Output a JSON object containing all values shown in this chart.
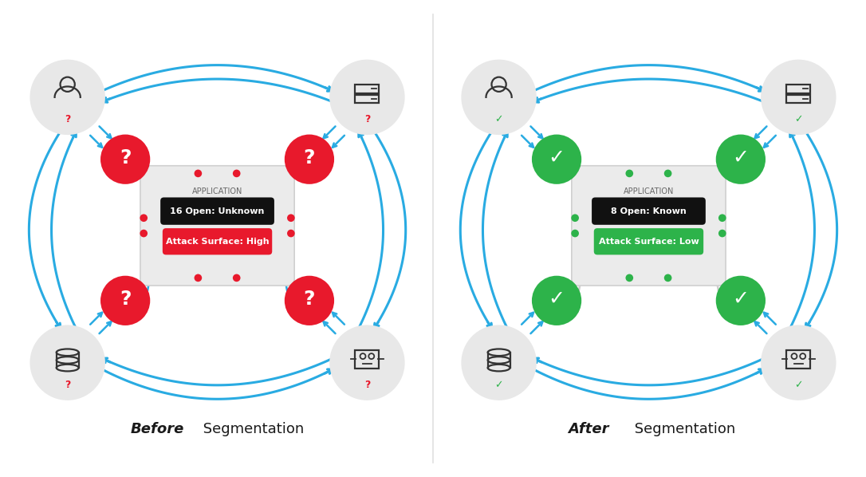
{
  "bg_color": "#ffffff",
  "blue_arrow": "#29abe2",
  "gray_arrow": "#cccccc",
  "red_circle": "#e8192c",
  "green_circle": "#2db34a",
  "green_dot": "#2db34a",
  "gray_circle_bg": "#e8e8e8",
  "dark_text": "#1a1a1a",
  "app_box_bg": "#ebebeb",
  "app_box_border": "#d0d0d0",
  "before_title": "Before",
  "after_title": "After",
  "subtitle": " Segmentation",
  "before_open_label": "16 Open: Unknown",
  "before_attack_label": "Attack Surface: High",
  "after_open_label": "8 Open: Known",
  "after_attack_label": "Attack Surface: Low",
  "app_label": "APPLICATION",
  "question_mark": "?",
  "check_mark": "✓",
  "icon_color": "#333333",
  "pill_black": "#111111",
  "red_dot": "#e8192c"
}
